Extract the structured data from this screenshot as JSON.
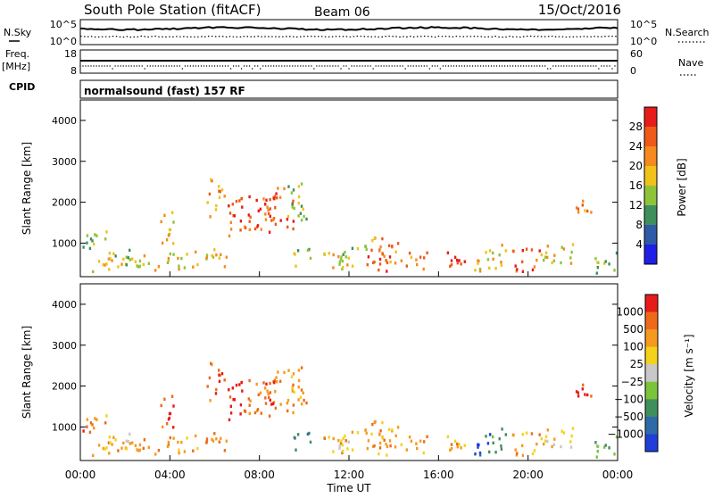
{
  "header": {
    "station": "South Pole Station (fitACF)",
    "beam": "Beam 06",
    "date": "15/Oct/2016"
  },
  "noise_panel": {
    "left_label": "N.Sky",
    "left_ticks": [
      "10^5",
      "10^0"
    ],
    "right_ticks": [
      "10^5",
      "10^0"
    ],
    "right_label": "N.Search"
  },
  "freq_panel": {
    "left_label_1": "Freq.",
    "left_label_2": "[MHz]",
    "left_ticks": [
      "18",
      "8"
    ],
    "right_ticks": [
      "60",
      "0"
    ],
    "right_label": "Nave"
  },
  "cpid": {
    "label": "CPID",
    "mode": "normalsound (fast) 157 RF"
  },
  "colors": {
    "power_scale": [
      "#1f1fe6",
      "#2e5aa8",
      "#3f8f5c",
      "#8fc43a",
      "#f0c21a",
      "#f58a1e",
      "#ee5a1a",
      "#e81b1b"
    ],
    "velocity_scale": [
      "#1f3fd8",
      "#2e6aa8",
      "#3f8f5c",
      "#7ac43a",
      "#c8c8c8",
      "#f5d21a",
      "#f59a1e",
      "#ee6a1a",
      "#e81b1b"
    ]
  },
  "chart_data": [
    {
      "type": "heatmap",
      "name": "power",
      "ylabel": "Slant Range [km]",
      "yticks": [
        "4000",
        "3000",
        "2000",
        "1000"
      ],
      "ylim": [
        180,
        4500
      ],
      "xlim": [
        0,
        24
      ],
      "colorbar_label": "Power [dB]",
      "colorbar_ticks": [
        "28",
        "24",
        "20",
        "16",
        "12",
        "8",
        "4"
      ],
      "clim": [
        0,
        30
      ]
    },
    {
      "type": "heatmap",
      "name": "velocity",
      "ylabel": "Slant Range [km]",
      "yticks": [
        "4000",
        "3000",
        "2000",
        "1000"
      ],
      "ylim": [
        180,
        4500
      ],
      "xlim": [
        0,
        24
      ],
      "colorbar_label": "Velocity [m s⁻¹]",
      "colorbar_ticks": [
        "1000",
        "500",
        "100",
        "25",
        "−25",
        "−100",
        "−500",
        "−1000"
      ],
      "clim": [
        -1000,
        1000
      ]
    }
  ],
  "xaxis": {
    "ticks": [
      "00:00",
      "04:00",
      "08:00",
      "12:00",
      "16:00",
      "20:00",
      "00:00"
    ],
    "label": "Time UT"
  }
}
